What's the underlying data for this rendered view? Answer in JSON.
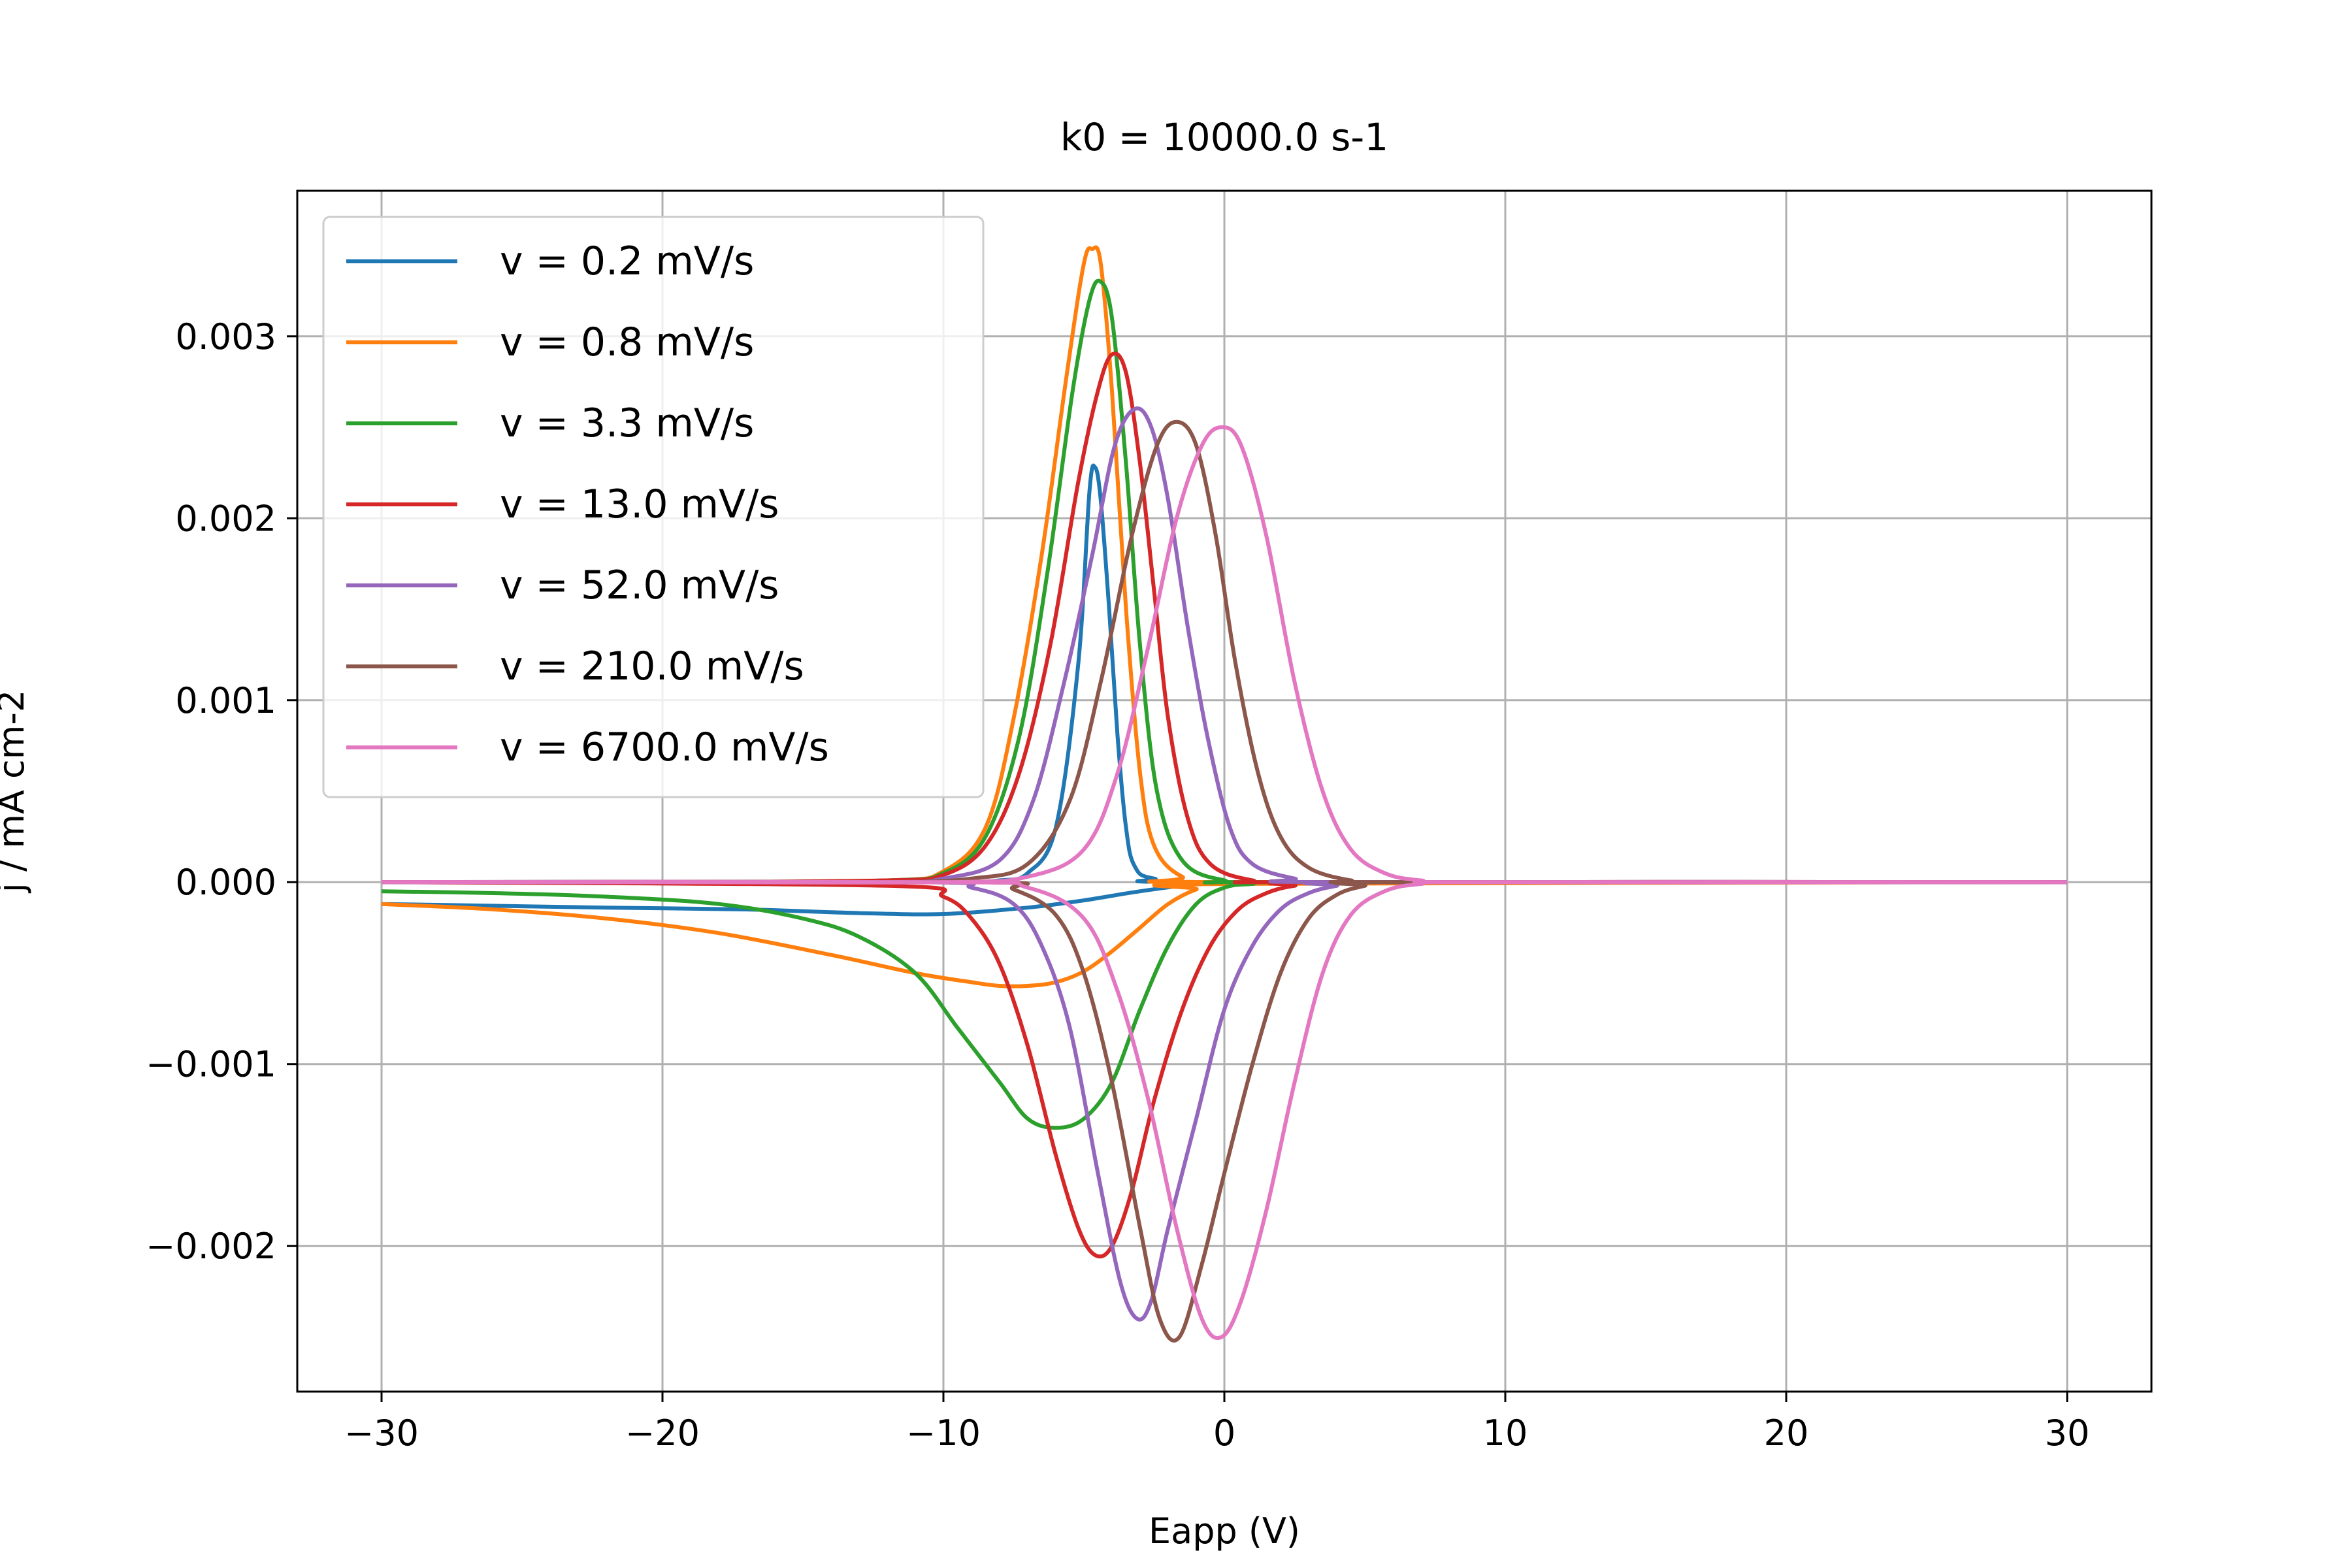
{
  "chart_data": {
    "type": "line",
    "title": "k0 = 10000.0 s-1",
    "xlabel": "Eapp (V)",
    "ylabel": "j / mA cm-2",
    "xlim": [
      -33,
      33
    ],
    "ylim": [
      -0.0028,
      0.0038
    ],
    "xticks": [
      -30,
      -20,
      -10,
      0,
      10,
      20,
      30
    ],
    "xtick_labels": [
      "−30",
      "−20",
      "−10",
      "0",
      "10",
      "20",
      "30"
    ],
    "yticks": [
      -0.002,
      -0.001,
      0.0,
      0.001,
      0.002,
      0.003
    ],
    "ytick_labels": [
      "−0.002",
      "−0.001",
      "0.000",
      "0.001",
      "0.002",
      "0.003"
    ],
    "grid": true,
    "legend_position": "top-left",
    "series": [
      {
        "name": "v = 0.2 mV/s",
        "color": "#1f77b4",
        "forward": [
          [
            -30,
            0
          ],
          [
            -20,
            0
          ],
          [
            -10,
            0
          ],
          [
            -8,
            1e-05
          ],
          [
            -7,
            5e-05
          ],
          [
            -6,
            0.0003
          ],
          [
            -5.2,
            0.0012
          ],
          [
            -4.8,
            0.00215
          ],
          [
            -4.6,
            0.00228
          ],
          [
            -4.4,
            0.0021
          ],
          [
            -4.1,
            0.0015
          ],
          [
            -3.8,
            0.0008
          ],
          [
            -3.5,
            0.0003
          ],
          [
            -3.2,
            9e-05
          ],
          [
            -2.5,
            2e-05
          ],
          [
            0,
            0
          ],
          [
            30,
            0
          ]
        ],
        "reverse": [
          [
            30,
            0
          ],
          [
            0,
            0
          ],
          [
            -1,
            -1e-05
          ],
          [
            -3,
            -5e-05
          ],
          [
            -5,
            -0.0001
          ],
          [
            -7,
            -0.00014
          ],
          [
            -10,
            -0.000175
          ],
          [
            -13,
            -0.00017
          ],
          [
            -17,
            -0.00015
          ],
          [
            -22,
            -0.00014
          ],
          [
            -26,
            -0.00013
          ],
          [
            -30,
            -0.00012
          ]
        ]
      },
      {
        "name": "v = 0.8 mV/s",
        "color": "#ff7f0e",
        "forward": [
          [
            -30,
            0
          ],
          [
            -20,
            0
          ],
          [
            -12,
            1e-05
          ],
          [
            -10,
            6e-05
          ],
          [
            -8.5,
            0.0003
          ],
          [
            -7.5,
            0.0009
          ],
          [
            -6.5,
            0.0018
          ],
          [
            -5.6,
            0.0028
          ],
          [
            -5,
            0.0034
          ],
          [
            -4.7,
            0.00348
          ],
          [
            -4.4,
            0.0034
          ],
          [
            -4,
            0.0027
          ],
          [
            -3.5,
            0.0015
          ],
          [
            -3,
            0.0006
          ],
          [
            -2.5,
            0.0002
          ],
          [
            -1.5,
            3e-05
          ],
          [
            0,
            0
          ],
          [
            30,
            0
          ]
        ],
        "reverse": [
          [
            30,
            0
          ],
          [
            0,
            -1e-05
          ],
          [
            -1,
            -4e-05
          ],
          [
            -2,
            -0.00012
          ],
          [
            -3,
            -0.00025
          ],
          [
            -4,
            -0.00038
          ],
          [
            -5,
            -0.00049
          ],
          [
            -6,
            -0.00055
          ],
          [
            -7,
            -0.00057
          ],
          [
            -8,
            -0.00057
          ],
          [
            -9,
            -0.00055
          ],
          [
            -11,
            -0.0005
          ],
          [
            -14,
            -0.0004
          ],
          [
            -18,
            -0.00028
          ],
          [
            -22,
            -0.0002
          ],
          [
            -26,
            -0.00015
          ],
          [
            -30,
            -0.00012
          ]
        ]
      },
      {
        "name": "v = 3.3 mV/s",
        "color": "#2ca02c",
        "forward": [
          [
            -30,
            0
          ],
          [
            -20,
            0
          ],
          [
            -12,
            1e-05
          ],
          [
            -10,
            5e-05
          ],
          [
            -8.5,
            0.00025
          ],
          [
            -7.3,
            0.0008
          ],
          [
            -6.3,
            0.0017
          ],
          [
            -5.4,
            0.0027
          ],
          [
            -4.8,
            0.0032
          ],
          [
            -4.4,
            0.0033
          ],
          [
            -4,
            0.0031
          ],
          [
            -3.5,
            0.0023
          ],
          [
            -3,
            0.0013
          ],
          [
            -2.4,
            0.0005
          ],
          [
            -1.5,
            0.00012
          ],
          [
            0,
            1e-05
          ],
          [
            2,
            0
          ],
          [
            30,
            0
          ]
        ],
        "reverse": [
          [
            30,
            0
          ],
          [
            3,
            0
          ],
          [
            1,
            -1e-05
          ],
          [
            0,
            -3e-05
          ],
          [
            -1,
            -0.00012
          ],
          [
            -2,
            -0.00035
          ],
          [
            -3,
            -0.0007
          ],
          [
            -4,
            -0.0011
          ],
          [
            -5,
            -0.0013
          ],
          [
            -6,
            -0.00135
          ],
          [
            -7,
            -0.0013
          ],
          [
            -8,
            -0.0011
          ],
          [
            -9.5,
            -0.0008
          ],
          [
            -11,
            -0.0005
          ],
          [
            -13,
            -0.0003
          ],
          [
            -15,
            -0.0002
          ],
          [
            -18,
            -0.00012
          ],
          [
            -22,
            -8e-05
          ],
          [
            -26,
            -6e-05
          ],
          [
            -30,
            -5e-05
          ]
        ]
      },
      {
        "name": "v = 13.0 mV/s",
        "color": "#d62728",
        "forward": [
          [
            -30,
            0
          ],
          [
            -20,
            0
          ],
          [
            -12,
            1e-05
          ],
          [
            -10,
            4e-05
          ],
          [
            -8.5,
            0.0002
          ],
          [
            -7.3,
            0.0006
          ],
          [
            -6.2,
            0.0013
          ],
          [
            -5.2,
            0.0022
          ],
          [
            -4.5,
            0.0027
          ],
          [
            -4,
            0.0029
          ],
          [
            -3.5,
            0.0028
          ],
          [
            -3,
            0.0023
          ],
          [
            -2.5,
            0.0016
          ],
          [
            -2,
            0.0009
          ],
          [
            -1.3,
            0.00035
          ],
          [
            -0.5,
            0.0001
          ],
          [
            1,
            1e-05
          ],
          [
            3,
            0
          ],
          [
            30,
            0
          ]
        ],
        "reverse": [
          [
            30,
            0
          ],
          [
            4,
            0
          ],
          [
            2.5,
            -2e-05
          ],
          [
            1.5,
            -6e-05
          ],
          [
            0.5,
            -0.00015
          ],
          [
            -0.5,
            -0.00035
          ],
          [
            -1.5,
            -0.0007
          ],
          [
            -2.5,
            -0.0012
          ],
          [
            -3.3,
            -0.0017
          ],
          [
            -4,
            -0.002
          ],
          [
            -4.6,
            -0.00205
          ],
          [
            -5.2,
            -0.0019
          ],
          [
            -6,
            -0.0015
          ],
          [
            -7,
            -0.0009
          ],
          [
            -8,
            -0.00045
          ],
          [
            -9,
            -0.0002
          ],
          [
            -10,
            -8e-05
          ],
          [
            -12,
            -2e-05
          ],
          [
            -30,
            0
          ]
        ]
      },
      {
        "name": "v = 52.0 mV/s",
        "color": "#9467bd",
        "forward": [
          [
            -30,
            0
          ],
          [
            -20,
            0
          ],
          [
            -12,
            0
          ],
          [
            -10,
            2e-05
          ],
          [
            -8,
            0.00012
          ],
          [
            -6.8,
            0.00045
          ],
          [
            -5.7,
            0.0011
          ],
          [
            -4.7,
            0.0018
          ],
          [
            -3.9,
            0.0024
          ],
          [
            -3.2,
            0.0026
          ],
          [
            -2.6,
            0.0025
          ],
          [
            -2,
            0.0021
          ],
          [
            -1.3,
            0.0014
          ],
          [
            -0.6,
            0.0008
          ],
          [
            0.2,
            0.0003
          ],
          [
            1,
            0.0001
          ],
          [
            2.5,
            2e-05
          ],
          [
            4,
            0
          ],
          [
            30,
            0
          ]
        ],
        "reverse": [
          [
            30,
            0
          ],
          [
            5,
            0
          ],
          [
            4,
            -2e-05
          ],
          [
            3,
            -6e-05
          ],
          [
            2,
            -0.00015
          ],
          [
            1,
            -0.00035
          ],
          [
            0,
            -0.0007
          ],
          [
            -1,
            -0.0013
          ],
          [
            -2,
            -0.0019
          ],
          [
            -2.6,
            -0.0023
          ],
          [
            -3.1,
            -0.0024
          ],
          [
            -3.7,
            -0.0022
          ],
          [
            -4.5,
            -0.0016
          ],
          [
            -5.5,
            -0.0008
          ],
          [
            -6.5,
            -0.00035
          ],
          [
            -7.5,
            -0.00012
          ],
          [
            -9,
            -3e-05
          ],
          [
            -11,
            0
          ],
          [
            -30,
            0
          ]
        ]
      },
      {
        "name": "v = 210.0 mV/s",
        "color": "#8c564b",
        "forward": [
          [
            -30,
            0
          ],
          [
            -20,
            0
          ],
          [
            -12,
            0
          ],
          [
            -9,
            2e-05
          ],
          [
            -7,
            0.0001
          ],
          [
            -5.5,
            0.00045
          ],
          [
            -4.4,
            0.0011
          ],
          [
            -3.3,
            0.0019
          ],
          [
            -2.4,
            0.0024
          ],
          [
            -1.7,
            0.00253
          ],
          [
            -1,
            0.0024
          ],
          [
            -0.3,
            0.0019
          ],
          [
            0.4,
            0.0012
          ],
          [
            1.2,
            0.0006
          ],
          [
            2,
            0.00025
          ],
          [
            3,
            8e-05
          ],
          [
            4.5,
            1e-05
          ],
          [
            6,
            0
          ],
          [
            30,
            0
          ]
        ],
        "reverse": [
          [
            30,
            0
          ],
          [
            6,
            0
          ],
          [
            5,
            -2e-05
          ],
          [
            4,
            -7e-05
          ],
          [
            3,
            -0.0002
          ],
          [
            2,
            -0.0005
          ],
          [
            1,
            -0.001
          ],
          [
            0,
            -0.0016
          ],
          [
            -0.8,
            -0.0021
          ],
          [
            -1.6,
            -0.0025
          ],
          [
            -2.3,
            -0.0024
          ],
          [
            -3,
            -0.0019
          ],
          [
            -4,
            -0.0011
          ],
          [
            -5,
            -0.0005
          ],
          [
            -6,
            -0.00018
          ],
          [
            -7.5,
            -4e-05
          ],
          [
            -9,
            0
          ],
          [
            -30,
            0
          ]
        ]
      },
      {
        "name": "v = 6700.0 mV/s",
        "color": "#e377c2",
        "forward": [
          [
            -30,
            0
          ],
          [
            -20,
            0
          ],
          [
            -10,
            0
          ],
          [
            -7,
            3e-05
          ],
          [
            -5,
            0.00018
          ],
          [
            -3.8,
            0.0006
          ],
          [
            -2.7,
            0.0013
          ],
          [
            -1.7,
            0.002
          ],
          [
            -0.8,
            0.0024
          ],
          [
            -0.1,
            0.0025
          ],
          [
            0.6,
            0.0024
          ],
          [
            1.5,
            0.0019
          ],
          [
            2.5,
            0.0011
          ],
          [
            3.5,
            0.0005
          ],
          [
            4.5,
            0.00018
          ],
          [
            5.7,
            5e-05
          ],
          [
            7,
            1e-05
          ],
          [
            9,
            0
          ],
          [
            30,
            0
          ]
        ],
        "reverse": [
          [
            30,
            0
          ],
          [
            9,
            0
          ],
          [
            7,
            -1e-05
          ],
          [
            5.7,
            -5e-05
          ],
          [
            4.5,
            -0.00018
          ],
          [
            3.5,
            -0.0005
          ],
          [
            2.5,
            -0.0011
          ],
          [
            1.5,
            -0.0018
          ],
          [
            0.6,
            -0.0023
          ],
          [
            -0.1,
            -0.0025
          ],
          [
            -0.8,
            -0.0024
          ],
          [
            -1.7,
            -0.0019
          ],
          [
            -2.7,
            -0.0012
          ],
          [
            -3.8,
            -0.0006
          ],
          [
            -5,
            -0.0002
          ],
          [
            -7,
            -3e-05
          ],
          [
            -10,
            0
          ],
          [
            -30,
            0
          ]
        ]
      }
    ]
  }
}
